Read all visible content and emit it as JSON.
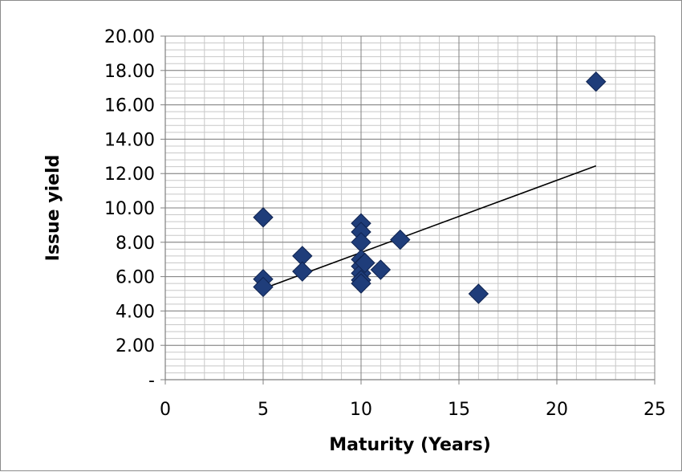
{
  "chart_data": {
    "type": "scatter",
    "xlabel": "Maturity (Years)",
    "ylabel": "Issue yield",
    "xlim": [
      0,
      25
    ],
    "ylim": [
      0,
      20
    ],
    "x_ticks": [
      0,
      5,
      10,
      15,
      20,
      25
    ],
    "x_tick_labels": [
      "0",
      "5",
      "10",
      "15",
      "20",
      "25"
    ],
    "y_ticks": [
      0,
      2,
      4,
      6,
      8,
      10,
      12,
      14,
      16,
      18,
      20
    ],
    "y_tick_labels": [
      "-",
      "2.00",
      "4.00",
      "6.00",
      "8.00",
      "10.00",
      "12.00",
      "14.00",
      "16.00",
      "18.00",
      "20.00"
    ],
    "grid": true,
    "marker": "diamond",
    "marker_color": "#1f3d7a",
    "trendline": {
      "type": "linear",
      "x": [
        5,
        22
      ],
      "y": [
        5.3,
        12.45
      ],
      "color": "#000000"
    },
    "points": [
      {
        "x": 5,
        "y": 9.45
      },
      {
        "x": 5,
        "y": 5.85
      },
      {
        "x": 5,
        "y": 5.4
      },
      {
        "x": 7,
        "y": 7.2
      },
      {
        "x": 7,
        "y": 6.3
      },
      {
        "x": 10,
        "y": 9.1
      },
      {
        "x": 10,
        "y": 8.6
      },
      {
        "x": 10,
        "y": 8.0
      },
      {
        "x": 10,
        "y": 7.0
      },
      {
        "x": 10,
        "y": 6.6
      },
      {
        "x": 10,
        "y": 6.2
      },
      {
        "x": 10,
        "y": 5.8
      },
      {
        "x": 10,
        "y": 5.6
      },
      {
        "x": 10.2,
        "y": 6.8
      },
      {
        "x": 11,
        "y": 6.4
      },
      {
        "x": 12,
        "y": 8.15
      },
      {
        "x": 16,
        "y": 5.0
      },
      {
        "x": 22,
        "y": 17.35
      }
    ]
  }
}
